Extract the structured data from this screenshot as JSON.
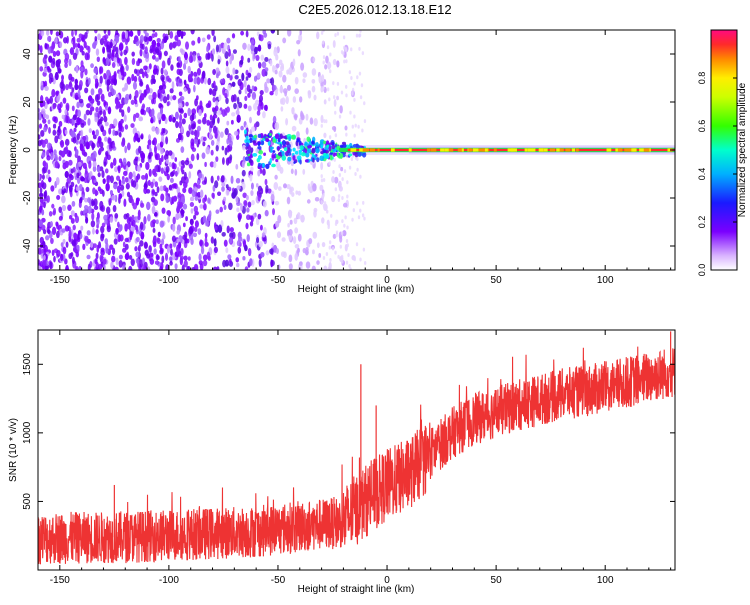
{
  "title": "C2E5.2026.012.13.18.E12",
  "chart_data": [
    {
      "type": "heatmap",
      "name": "spectrogram",
      "xlabel": "Height of straight line (km)",
      "ylabel": "Frequency (Hz)",
      "xlim": [
        -160,
        132
      ],
      "ylim": [
        -50,
        50
      ],
      "xticks": [
        -150,
        -100,
        -50,
        0,
        50,
        100
      ],
      "xtick_labels": [
        "-150",
        "-100",
        "-50",
        "0",
        "50",
        "100"
      ],
      "yticks": [
        -40,
        -20,
        0,
        20,
        40
      ],
      "ytick_labels": [
        "-40",
        "-20",
        "0",
        "20",
        "40"
      ],
      "colorbar": {
        "label": "Normalized spectral amplitude",
        "range": [
          0.0,
          1.0
        ],
        "ticks": [
          0.0,
          0.2,
          0.4,
          0.6,
          0.8
        ],
        "tick_labels": [
          "0.0",
          "0.2",
          "0.4",
          "0.6",
          "0.8"
        ]
      },
      "noise_extent_km": -25,
      "carrier_start_km": -65,
      "carrier_freq_hz": 0
    },
    {
      "type": "line",
      "name": "snr",
      "xlabel": "Height of straight line (km)",
      "ylabel": "SNR (10 * v/v)",
      "xlim": [
        -160,
        132
      ],
      "ylim": [
        0,
        1750
      ],
      "xticks": [
        -150,
        -100,
        -50,
        0,
        50,
        100
      ],
      "xtick_labels": [
        "-150",
        "-100",
        "-50",
        "0",
        "50",
        "100"
      ],
      "yticks": [
        500,
        1000,
        1500
      ],
      "ytick_labels": [
        "500",
        "1000",
        "1500"
      ],
      "color": "#ee3333",
      "trend_x": [
        -160,
        -120,
        -60,
        -20,
        -10,
        0,
        10,
        20,
        30,
        40,
        60,
        80,
        100,
        132
      ],
      "trend_y": [
        230,
        240,
        280,
        350,
        500,
        620,
        700,
        850,
        1000,
        1100,
        1200,
        1280,
        1330,
        1450
      ],
      "spread": 380,
      "spikes": [
        {
          "x": -125,
          "y": 620
        },
        {
          "x": -12,
          "y": 1500
        },
        {
          "x": -5,
          "y": 1200
        },
        {
          "x": 130,
          "y": 1740
        }
      ]
    }
  ]
}
